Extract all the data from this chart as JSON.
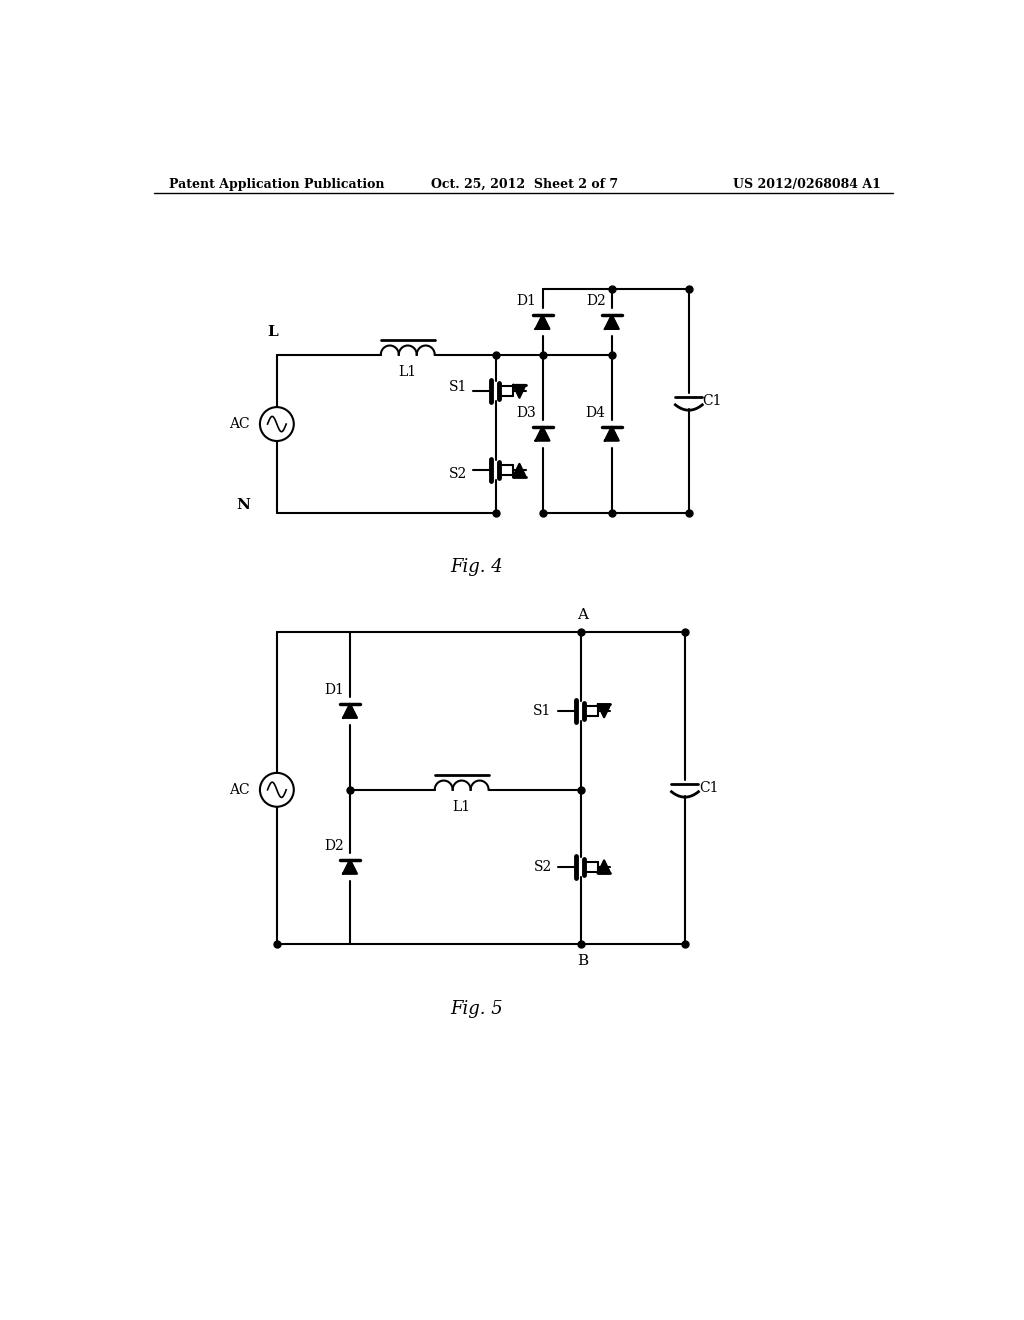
{
  "header_left": "Patent Application Publication",
  "header_center": "Oct. 25, 2012  Sheet 2 of 7",
  "header_right": "US 2012/0268084 A1",
  "fig4_label": "Fig. 4",
  "fig5_label": "Fig. 5",
  "bg_color": "#ffffff",
  "line_color": "#000000",
  "lw": 1.5,
  "dot_size": 5
}
